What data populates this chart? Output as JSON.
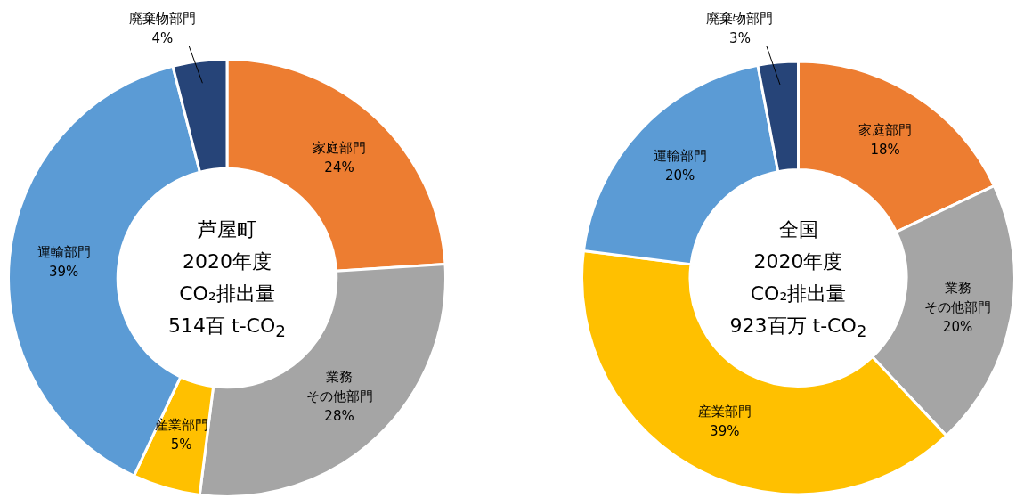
{
  "chart_data": [
    {
      "type": "donut",
      "categories": [
        "家庭部門",
        "業務その他部門",
        "産業部門",
        "運輸部門",
        "廃棄物部門"
      ],
      "values": [
        24,
        28,
        5,
        39,
        4
      ],
      "value_labels": [
        "24%",
        "28%",
        "5%",
        "39%",
        "4%"
      ],
      "colors": [
        "#ed7d31",
        "#a5a5a5",
        "#ffc000",
        "#5b9bd5",
        "#264478"
      ],
      "legend": false,
      "annotations": [
        "芦屋町",
        "2020年度",
        "CO₂排出量",
        "514百 t-CO$_{2}$"
      ]
    },
    {
      "type": "donut",
      "categories": [
        "家庭部門",
        "業務その他部門",
        "産業部門",
        "運輸部門",
        "廃棄物部門"
      ],
      "values": [
        18,
        20,
        39,
        20,
        3
      ],
      "value_labels": [
        "18%",
        "20%",
        "39%",
        "20%",
        "3%"
      ],
      "colors": [
        "#ed7d31",
        "#a5a5a5",
        "#ffc000",
        "#5b9bd5",
        "#264478"
      ],
      "legend": false,
      "annotations": [
        "全国",
        "2020年度",
        "CO₂排出量",
        "923百万 t-CO$_{2}$"
      ]
    }
  ]
}
